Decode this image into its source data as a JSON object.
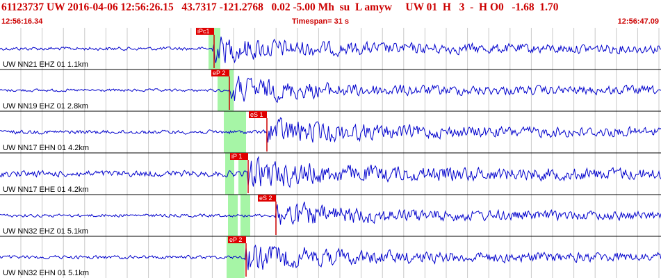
{
  "header": {
    "title": "61123737 UW 2016-04-06 12:56:26.15   43.7317 -121.2768   0.02 -5.00 Mh  su  L amyw     UW 01  H   3  -  H O0   -1.68  1.70",
    "start_time": "12:56:16.34",
    "timespan": "Timespan=  31 s",
    "end_time": "12:56:47.09"
  },
  "colors": {
    "title": "#cc0000",
    "waveform": "#0000cc",
    "pick_line": "#cc0000",
    "pick_box": "#e00000",
    "pick_window": "#a6f5a6",
    "grid": "#c8c8c8"
  },
  "traces": [
    {
      "label": "UW NN21 EHZ 01 1.1km",
      "amplitude": 0.45,
      "picks": [
        {
          "label": "iPc1"
        }
      ]
    },
    {
      "label": "UW NN19 EHZ 01 2.8km",
      "amplitude": 0.35,
      "picks": [
        {
          "label": "eP 2"
        }
      ]
    },
    {
      "label": "UW NN17 EHN 01 4.2km",
      "amplitude": 0.5,
      "picks": [
        {
          "label": "eS 1"
        }
      ]
    },
    {
      "label": "UW NN17 EHE 01 4.2km",
      "amplitude": 0.8,
      "picks": [
        {
          "label": "iP 1"
        }
      ]
    },
    {
      "label": "UW NN32 EHZ 01 5.1km",
      "amplitude": 0.4,
      "picks": [
        {
          "label": "eS 2"
        }
      ]
    },
    {
      "label": "UW NN32 EHN 01 5.1km",
      "amplitude": 0.45,
      "picks": [
        {
          "label": "eP 2"
        }
      ]
    }
  ]
}
